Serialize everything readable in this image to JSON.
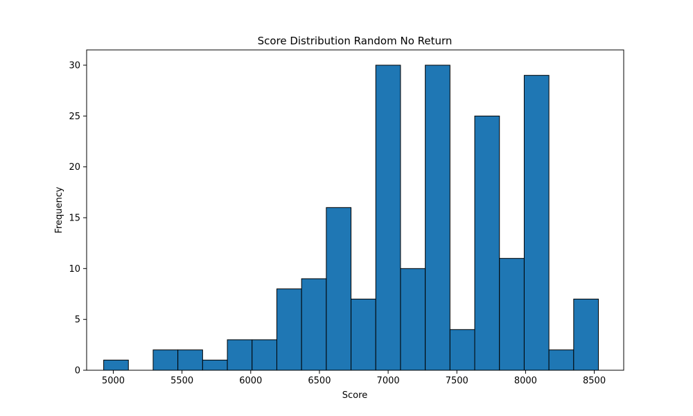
{
  "chart_data": {
    "type": "bar",
    "title": "Score Distribution Random No Return",
    "xlabel": "Score",
    "ylabel": "Frequency",
    "bar_color": "#1f77b4",
    "edge_color": "#000000",
    "grid": false,
    "xlim": [
      4806,
      8714
    ],
    "ylim": [
      0,
      31.5
    ],
    "xticks": [
      5000,
      5500,
      6000,
      6500,
      7000,
      7500,
      8000,
      8500
    ],
    "yticks": [
      0,
      5,
      10,
      15,
      20,
      25,
      30
    ],
    "bins": [
      {
        "start": 4930,
        "end": 5110,
        "count": 1
      },
      {
        "start": 5110,
        "end": 5290,
        "count": 0
      },
      {
        "start": 5290,
        "end": 5470,
        "count": 2
      },
      {
        "start": 5470,
        "end": 5650,
        "count": 2
      },
      {
        "start": 5650,
        "end": 5830,
        "count": 1
      },
      {
        "start": 5830,
        "end": 6010,
        "count": 3
      },
      {
        "start": 6010,
        "end": 6190,
        "count": 3
      },
      {
        "start": 6190,
        "end": 6370,
        "count": 8
      },
      {
        "start": 6370,
        "end": 6550,
        "count": 9
      },
      {
        "start": 6550,
        "end": 6730,
        "count": 16
      },
      {
        "start": 6730,
        "end": 6910,
        "count": 7
      },
      {
        "start": 6910,
        "end": 7090,
        "count": 30
      },
      {
        "start": 7090,
        "end": 7270,
        "count": 10
      },
      {
        "start": 7270,
        "end": 7450,
        "count": 30
      },
      {
        "start": 7450,
        "end": 7630,
        "count": 4
      },
      {
        "start": 7630,
        "end": 7810,
        "count": 25
      },
      {
        "start": 7810,
        "end": 7990,
        "count": 11
      },
      {
        "start": 7990,
        "end": 8170,
        "count": 29
      },
      {
        "start": 8170,
        "end": 8350,
        "count": 2
      },
      {
        "start": 8350,
        "end": 8530,
        "count": 7
      }
    ]
  }
}
